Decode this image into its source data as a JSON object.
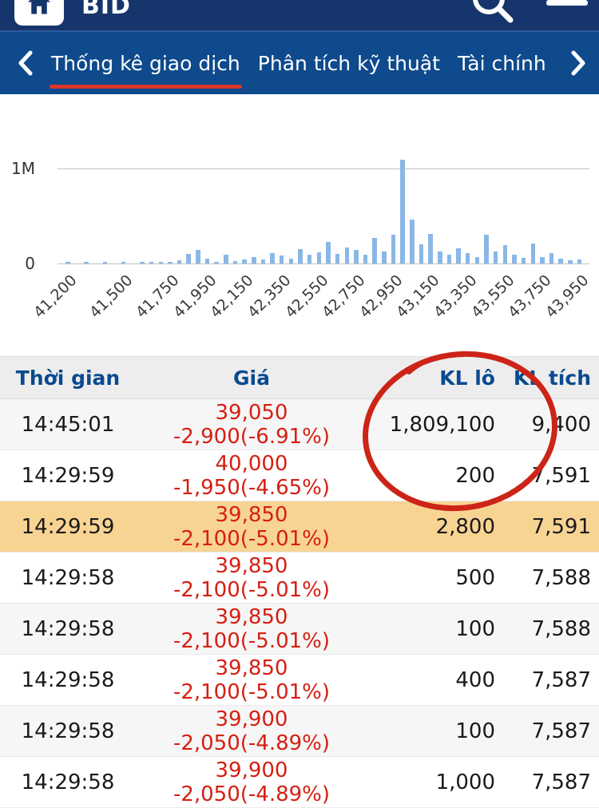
{
  "header": {
    "title": "BID",
    "icons": {
      "home": "home-icon",
      "search": "search-icon",
      "menu": "menu-icon"
    }
  },
  "nav": {
    "back_chevron": "chevron-left",
    "forward_chevron": "chevron-right",
    "tabs": [
      {
        "label": "Thống kê giao dịch",
        "active": true
      },
      {
        "label": "Phân tích kỹ thuật",
        "active": false
      },
      {
        "label": "Tài chính",
        "active": false
      }
    ]
  },
  "chart_data": {
    "type": "bar",
    "description": "Volume traded by price level",
    "yticks": {
      "top": "1M",
      "zero": "0"
    },
    "ylim": [
      0,
      1200000
    ],
    "bar_color": "#8ab7e6",
    "x_tick_labels": [
      "41,200",
      "41,500",
      "41,750",
      "41,950",
      "42,150",
      "42,350",
      "42,550",
      "42,750",
      "42,950",
      "43,150",
      "43,350",
      "43,550",
      "43,750",
      "43,950"
    ],
    "x_tick_indices": [
      0,
      6,
      11,
      15,
      19,
      23,
      27,
      31,
      35,
      39,
      43,
      47,
      51,
      55
    ],
    "values_millions": [
      0.012,
      0.0,
      0.008,
      0.0,
      0.01,
      0.0,
      0.012,
      0.0,
      0.015,
      0.008,
      0.02,
      0.012,
      0.03,
      0.1,
      0.14,
      0.05,
      0.02,
      0.09,
      0.025,
      0.04,
      0.07,
      0.045,
      0.11,
      0.08,
      0.05,
      0.15,
      0.09,
      0.12,
      0.23,
      0.1,
      0.17,
      0.14,
      0.09,
      0.27,
      0.13,
      0.3,
      1.09,
      0.46,
      0.2,
      0.31,
      0.13,
      0.09,
      0.16,
      0.11,
      0.07,
      0.3,
      0.13,
      0.19,
      0.09,
      0.06,
      0.21,
      0.07,
      0.11,
      0.05,
      0.03,
      0.04
    ]
  },
  "table": {
    "columns": [
      "Thời gian",
      "Giá",
      "KL lô",
      "KL tích"
    ],
    "rows": [
      {
        "time": "14:45:01",
        "price": "39,050",
        "change": "-2,900(-6.91%)",
        "lot": "1,809,100",
        "cum": "9,400",
        "highlight": false
      },
      {
        "time": "14:29:59",
        "price": "40,000",
        "change": "-1,950(-4.65%)",
        "lot": "200",
        "cum": "7,591",
        "highlight": false
      },
      {
        "time": "14:29:59",
        "price": "39,850",
        "change": "-2,100(-5.01%)",
        "lot": "2,800",
        "cum": "7,591",
        "highlight": true
      },
      {
        "time": "14:29:58",
        "price": "39,850",
        "change": "-2,100(-5.01%)",
        "lot": "500",
        "cum": "7,588",
        "highlight": false
      },
      {
        "time": "14:29:58",
        "price": "39,850",
        "change": "-2,100(-5.01%)",
        "lot": "100",
        "cum": "7,588",
        "highlight": false
      },
      {
        "time": "14:29:58",
        "price": "39,850",
        "change": "-2,100(-5.01%)",
        "lot": "400",
        "cum": "7,587",
        "highlight": false
      },
      {
        "time": "14:29:58",
        "price": "39,900",
        "change": "-2,050(-4.89%)",
        "lot": "100",
        "cum": "7,587",
        "highlight": false
      },
      {
        "time": "14:29:58",
        "price": "39,900",
        "change": "-2,050(-4.89%)",
        "lot": "1,000",
        "cum": "7,587",
        "highlight": false
      }
    ]
  },
  "annotation": {
    "type": "hand-drawn-circle",
    "color": "#cd2418",
    "target": "KL lô value 1,809,100"
  },
  "colors": {
    "header_blue": "#16356c",
    "nav_blue": "#0e4a8c",
    "accent_red": "#d9362c",
    "price_red": "#d51f12",
    "bar_blue": "#8ab7e6",
    "highlight_row": "#f8d493",
    "header_text_blue": "#0a4a8f"
  }
}
